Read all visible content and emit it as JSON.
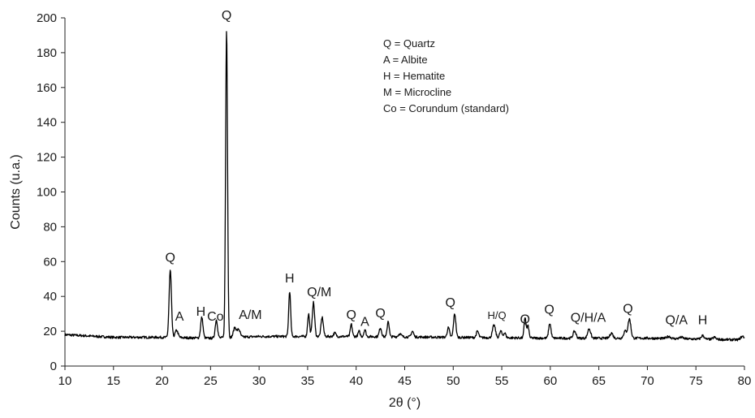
{
  "chart_data": {
    "type": "line",
    "title": "",
    "xlabel": "2θ (°)",
    "ylabel": "Counts (u.a.)",
    "xlim": [
      10,
      80
    ],
    "ylim": [
      0,
      200
    ],
    "xticks": [
      10,
      15,
      20,
      25,
      30,
      35,
      40,
      45,
      50,
      55,
      60,
      65,
      70,
      75,
      80
    ],
    "yticks": [
      0,
      20,
      40,
      60,
      80,
      100,
      120,
      140,
      160,
      180,
      200
    ],
    "grid": false,
    "line_color": "#000000",
    "legend": {
      "placement": "top-right",
      "entries": [
        "Q = Quartz",
        "A = Albite",
        "H = Hematite",
        "M = Microcline",
        "Co = Corundum (standard)"
      ]
    },
    "series": [
      {
        "baseline": [
          [
            10,
            18
          ],
          [
            15,
            16.5
          ],
          [
            20,
            16.5
          ],
          [
            25,
            16
          ],
          [
            30,
            17
          ],
          [
            40,
            17
          ],
          [
            50,
            16.5
          ],
          [
            60,
            16
          ],
          [
            70,
            16
          ],
          [
            75,
            15.5
          ],
          [
            80,
            15
          ]
        ],
        "peaks": [
          [
            20.85,
            55,
            0.12
          ],
          [
            21.5,
            20.5,
            0.15
          ],
          [
            24.1,
            28,
            0.12
          ],
          [
            25.6,
            26.5,
            0.12
          ],
          [
            26.65,
            193,
            0.1
          ],
          [
            27.5,
            22,
            0.15
          ],
          [
            27.9,
            21,
            0.15
          ],
          [
            33.15,
            43,
            0.1
          ],
          [
            35.1,
            30,
            0.1
          ],
          [
            35.6,
            36.5,
            0.12
          ],
          [
            36.5,
            28,
            0.12
          ],
          [
            37.8,
            19,
            0.12
          ],
          [
            39.5,
            24,
            0.1
          ],
          [
            40.3,
            20,
            0.1
          ],
          [
            40.9,
            21,
            0.1
          ],
          [
            42.5,
            22,
            0.12
          ],
          [
            43.3,
            26,
            0.1
          ],
          [
            44.5,
            18.5,
            0.15
          ],
          [
            45.8,
            20,
            0.12
          ],
          [
            49.5,
            22,
            0.12
          ],
          [
            50.15,
            30,
            0.12
          ],
          [
            52.5,
            20,
            0.12
          ],
          [
            54.2,
            23.5,
            0.15
          ],
          [
            54.9,
            20,
            0.12
          ],
          [
            55.3,
            19,
            0.12
          ],
          [
            57.4,
            28,
            0.1
          ],
          [
            57.7,
            23,
            0.1
          ],
          [
            59.95,
            24.5,
            0.12
          ],
          [
            62.5,
            20,
            0.15
          ],
          [
            64.0,
            21.5,
            0.15
          ],
          [
            66.3,
            19,
            0.15
          ],
          [
            67.7,
            20,
            0.15
          ],
          [
            68.15,
            27,
            0.15
          ],
          [
            72.2,
            17,
            0.2
          ],
          [
            73.5,
            16.5,
            0.2
          ],
          [
            75.7,
            17.5,
            0.15
          ],
          [
            76.9,
            16.5,
            0.15
          ],
          [
            79.8,
            17,
            0.2
          ]
        ]
      }
    ],
    "annotations": [
      {
        "text": "Q",
        "x": 20.85,
        "y": 60
      },
      {
        "text": "A",
        "x": 21.8,
        "y": 26
      },
      {
        "text": "H",
        "x": 24.0,
        "y": 29
      },
      {
        "text": "Co",
        "x": 25.5,
        "y": 26
      },
      {
        "text": "Q",
        "x": 26.65,
        "y": 199
      },
      {
        "text": "A/M",
        "x": 29.1,
        "y": 27
      },
      {
        "text": "H",
        "x": 33.15,
        "y": 48
      },
      {
        "text": "Q/M",
        "x": 36.2,
        "y": 40
      },
      {
        "text": "Q",
        "x": 39.5,
        "y": 27
      },
      {
        "text": "A",
        "x": 40.9,
        "y": 23
      },
      {
        "text": "Q",
        "x": 42.5,
        "y": 28
      },
      {
        "text": "Q",
        "x": 49.7,
        "y": 34
      },
      {
        "text": "H/Q",
        "x": 54.5,
        "y": 27,
        "small": true
      },
      {
        "text": "Q",
        "x": 57.4,
        "y": 24.5
      },
      {
        "text": "Q",
        "x": 59.9,
        "y": 30
      },
      {
        "text": "Q/H/A",
        "x": 63.9,
        "y": 25.5
      },
      {
        "text": "Q",
        "x": 68.0,
        "y": 30.5
      },
      {
        "text": "Q/A",
        "x": 73.0,
        "y": 24
      },
      {
        "text": "H",
        "x": 75.7,
        "y": 24
      }
    ]
  }
}
